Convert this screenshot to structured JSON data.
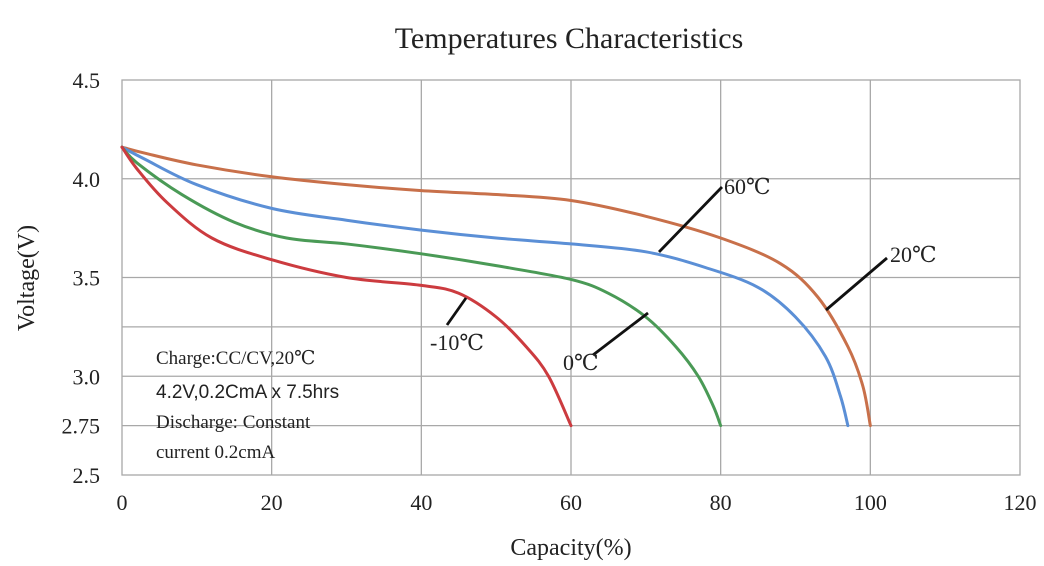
{
  "chart_data": {
    "type": "line",
    "title": "Temperatures Characteristics",
    "xlabel": "Capacity(%)",
    "ylabel": "Voltage(V)",
    "xlim": [
      0,
      120
    ],
    "ylim": [
      2.5,
      4.5
    ],
    "x_ticks": [
      "0",
      "20",
      "40",
      "60",
      "80",
      "100",
      "120"
    ],
    "y_ticks": [
      {
        "value": 4.5,
        "label": "4.5"
      },
      {
        "value": 4.0,
        "label": "4.0"
      },
      {
        "value": 3.5,
        "label": "3.5"
      },
      {
        "value": 3.0,
        "label": "3.0"
      },
      {
        "value": 2.75,
        "label": "2.75"
      },
      {
        "value": 2.5,
        "label": "2.5"
      }
    ],
    "grid": true,
    "series": [
      {
        "name": "60℃",
        "color": "#c8704a",
        "points": [
          [
            0,
            4.16
          ],
          [
            3,
            4.13
          ],
          [
            10,
            4.07
          ],
          [
            20,
            4.01
          ],
          [
            30,
            3.97
          ],
          [
            40,
            3.94
          ],
          [
            50,
            3.92
          ],
          [
            60,
            3.89
          ],
          [
            70,
            3.81
          ],
          [
            80,
            3.7
          ],
          [
            88,
            3.57
          ],
          [
            93,
            3.4
          ],
          [
            97,
            3.15
          ],
          [
            99,
            2.95
          ],
          [
            100,
            2.75
          ]
        ]
      },
      {
        "name": "20℃",
        "color": "#5b8fd6",
        "points": [
          [
            0,
            4.16
          ],
          [
            3,
            4.1
          ],
          [
            10,
            3.97
          ],
          [
            20,
            3.85
          ],
          [
            30,
            3.79
          ],
          [
            40,
            3.74
          ],
          [
            50,
            3.7
          ],
          [
            60,
            3.67
          ],
          [
            70,
            3.63
          ],
          [
            78,
            3.55
          ],
          [
            85,
            3.45
          ],
          [
            90,
            3.3
          ],
          [
            94,
            3.1
          ],
          [
            96,
            2.9
          ],
          [
            97,
            2.75
          ]
        ]
      },
      {
        "name": "0℃",
        "color": "#4a9a56",
        "points": [
          [
            0,
            4.16
          ],
          [
            2,
            4.08
          ],
          [
            8,
            3.92
          ],
          [
            15,
            3.78
          ],
          [
            22,
            3.7
          ],
          [
            30,
            3.67
          ],
          [
            40,
            3.62
          ],
          [
            50,
            3.56
          ],
          [
            60,
            3.49
          ],
          [
            65,
            3.42
          ],
          [
            70,
            3.3
          ],
          [
            74,
            3.15
          ],
          [
            77,
            3.0
          ],
          [
            79,
            2.85
          ],
          [
            80,
            2.75
          ]
        ]
      },
      {
        "name": "-10℃",
        "color": "#cc3b3f",
        "points": [
          [
            0,
            4.16
          ],
          [
            2,
            4.05
          ],
          [
            6,
            3.88
          ],
          [
            12,
            3.7
          ],
          [
            20,
            3.59
          ],
          [
            30,
            3.5
          ],
          [
            40,
            3.46
          ],
          [
            45,
            3.42
          ],
          [
            50,
            3.3
          ],
          [
            54,
            3.15
          ],
          [
            57,
            3.0
          ],
          [
            60,
            2.75
          ]
        ]
      }
    ],
    "annotations": [
      {
        "text": "60℃",
        "for": "60℃"
      },
      {
        "text": "20℃",
        "for": "20℃"
      },
      {
        "text": "0℃",
        "for": "0℃"
      },
      {
        "text": "-10℃",
        "for": "-10℃"
      }
    ],
    "note_lines": [
      "Charge:CC/CV,20℃",
      "4.2V,0.2CmA x 7.5hrs",
      "Discharge:  Constant",
      "current 0.2cmA"
    ]
  }
}
